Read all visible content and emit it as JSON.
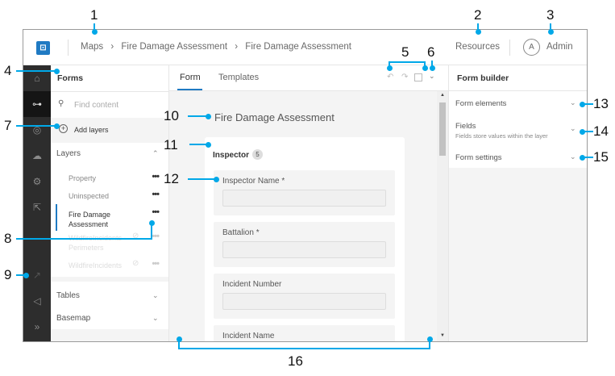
{
  "header": {
    "breadcrumb": [
      "Maps",
      "Fire Damage Assessment",
      "Fire Damage Assessment"
    ],
    "resources": "Resources",
    "avatar_initial": "A",
    "user": "Admin"
  },
  "rail": {
    "icons": [
      "home-icon",
      "form-builder-icon",
      "layers-icon",
      "cloud-icon",
      "settings-icon",
      "share-icon",
      "open-external-icon",
      "announcement-icon",
      "expand-icon"
    ]
  },
  "left": {
    "title": "Forms",
    "search_placeholder": "Find content",
    "add_layers": "Add layers",
    "layers_label": "Layers",
    "layers": [
      {
        "name": "Property",
        "state": "normal"
      },
      {
        "name": "Uninspected",
        "state": "normal"
      },
      {
        "name": "Fire Damage Assessment",
        "state": "selected"
      },
      {
        "name": "WildfireIncidents - Perimeters",
        "state": "disabled"
      },
      {
        "name": "WildfireIncidents",
        "state": "disabled"
      }
    ],
    "tables": "Tables",
    "basemap": "Basemap"
  },
  "center": {
    "tabs": [
      "Form",
      "Templates"
    ],
    "active_tab": "Form",
    "form_title": "Fire Damage Assessment",
    "group": {
      "name": "Inspector",
      "count": "5"
    },
    "fields": [
      "Inspector Name *",
      "Battalion *",
      "Incident Number",
      "Incident Name"
    ]
  },
  "right": {
    "title": "Form builder",
    "sections": [
      {
        "label": "Form elements",
        "sub": ""
      },
      {
        "label": "Fields",
        "sub": "Fields store values within the layer"
      },
      {
        "label": "Form settings",
        "sub": ""
      }
    ]
  },
  "callouts": [
    "1",
    "2",
    "3",
    "4",
    "5",
    "6",
    "7",
    "8",
    "9",
    "10",
    "11",
    "12",
    "13",
    "14",
    "15",
    "16"
  ],
  "colors": {
    "accent": "#1f7ac3",
    "callout": "#00a8e8",
    "rail": "#2d2d2d"
  }
}
